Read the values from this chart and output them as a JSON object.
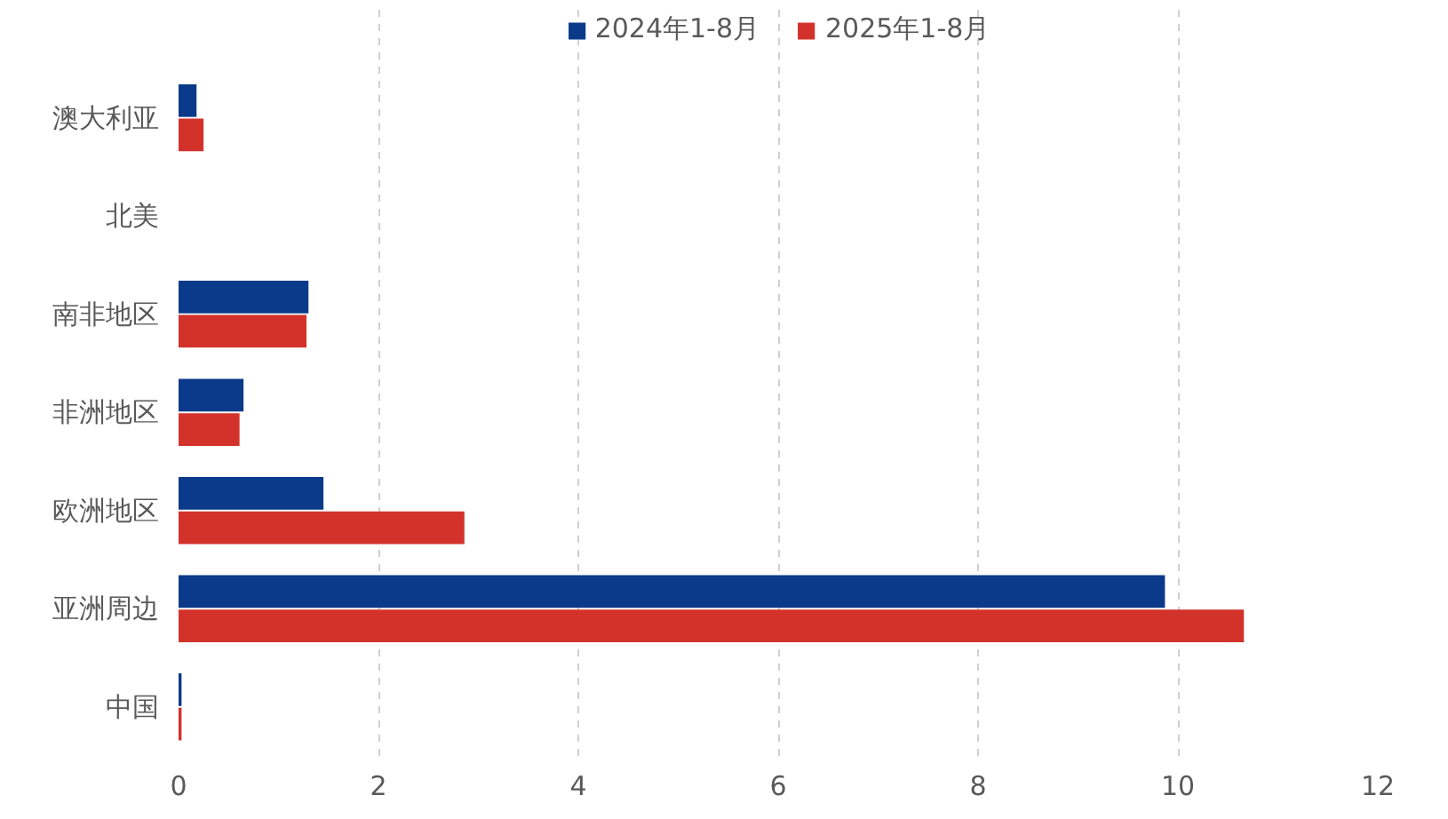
{
  "chart_data": {
    "type": "bar",
    "orientation": "horizontal",
    "categories": [
      "澳大利亚",
      "北美",
      "南非地区",
      "非洲地区",
      "欧洲地区",
      "亚洲周边",
      "中国"
    ],
    "series": [
      {
        "name": "2024年1-8月",
        "color": "#0b3a8a",
        "values": [
          0.18,
          0,
          1.3,
          0.65,
          1.45,
          9.87,
          0.03
        ]
      },
      {
        "name": "2025年1-8月",
        "color": "#d3322b",
        "values": [
          0.25,
          0,
          1.28,
          0.61,
          2.86,
          10.66,
          0.03
        ]
      }
    ],
    "xlim": [
      0,
      12
    ],
    "xticks": [
      0,
      2,
      4,
      6,
      8,
      10,
      12
    ],
    "grid": "x",
    "legend": "top"
  }
}
